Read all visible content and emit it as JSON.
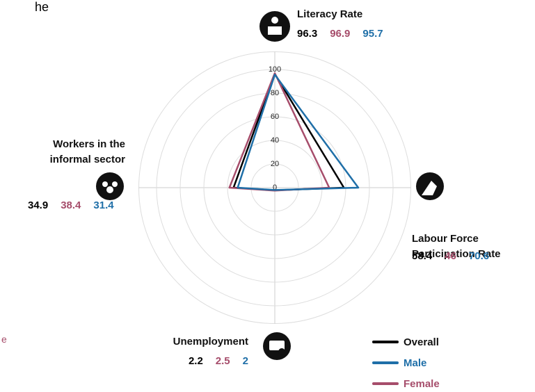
{
  "fragments": [
    "he",
    "e"
  ],
  "chart_data": {
    "type": "radar",
    "axes": [
      "Literacy Rate",
      "Labour Force Participation Rate",
      "Unemployment",
      "Workers in the informal sector"
    ],
    "series": [
      {
        "name": "Overall",
        "color": "#000000",
        "values": [
          96.3,
          58.4,
          2.2,
          34.9
        ]
      },
      {
        "name": "Female",
        "color": "#a64d6b",
        "values": [
          96.9,
          46,
          2.5,
          38.4
        ]
      },
      {
        "name": "Male",
        "color": "#1f6fa8",
        "values": [
          95.7,
          70.6,
          2,
          31.4
        ]
      }
    ],
    "legend_order": [
      "Overall",
      "Male",
      "Female"
    ],
    "rlim": [
      0,
      100
    ],
    "rticks": [
      0,
      20,
      40,
      60,
      80,
      100
    ],
    "grid": true
  }
}
